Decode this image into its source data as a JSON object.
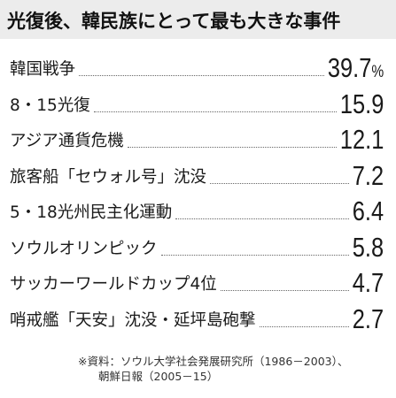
{
  "title": "光復後、韓民族にとって最も大きな事件",
  "chart_data": {
    "type": "table",
    "unit": "%",
    "rows": [
      {
        "label": "韓国戦争",
        "value": "39.7"
      },
      {
        "label": "8・15光復",
        "value": "15.9"
      },
      {
        "label": "アジア通貨危機",
        "value": "12.1"
      },
      {
        "label": "旅客船「セウォル号」沈没",
        "value": "7.2"
      },
      {
        "label": "5・18光州民主化運動",
        "value": "6.4"
      },
      {
        "label": "ソウルオリンピック",
        "value": "5.8"
      },
      {
        "label": "サッカーワールドカップ4位",
        "value": "4.7"
      },
      {
        "label": "哨戒艦「天安」沈没・延坪島砲撃",
        "value": "2.7"
      }
    ]
  },
  "source": {
    "line1": "※資料：ソウル大学社会発展研究所（1986－2003）、",
    "line2": "朝鮮日報（2005－15）"
  }
}
